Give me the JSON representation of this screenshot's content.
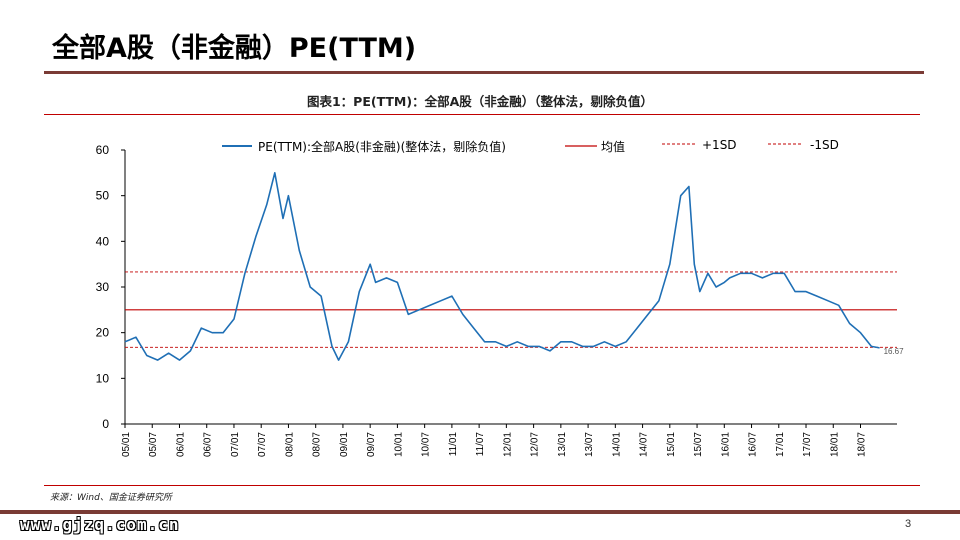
{
  "page": {
    "title": "全部A股（非金融）PE(TTM)",
    "caption": "图表1：PE(TTM)：全部A股（非金融）（整体法，剔除负值）",
    "source": "来源：Wind、国金证券研究所",
    "watermark": "www.gjzq.com.cn",
    "page_number": "3"
  },
  "colors": {
    "series": "#1f6fb5",
    "mean": "#c00000",
    "sd_lines": "#c00000",
    "brand_rule": "#7a3b35"
  },
  "chart_data": {
    "type": "line",
    "ylim": [
      0,
      60
    ],
    "y_ticks": [
      "0",
      "10",
      "20",
      "30",
      "40",
      "50",
      "60"
    ],
    "x_tick_labels": [
      "05/01",
      "05/07",
      "06/01",
      "06/07",
      "07/01",
      "07/07",
      "08/01",
      "08/07",
      "09/01",
      "09/07",
      "10/01",
      "10/07",
      "11/01",
      "11/07",
      "12/01",
      "12/07",
      "13/01",
      "13/07",
      "14/01",
      "14/07",
      "15/01",
      "15/07",
      "16/01",
      "16/07",
      "17/01",
      "17/07",
      "18/01",
      "18/07"
    ],
    "grid": false,
    "legend_placement": "top",
    "series": [
      {
        "name": "PE(TTM):全部A股(非金融)(整体法，剔除负值)",
        "x": [
          2005.0,
          2005.2,
          2005.4,
          2005.6,
          2005.8,
          2006.0,
          2006.2,
          2006.4,
          2006.6,
          2006.8,
          2007.0,
          2007.2,
          2007.4,
          2007.6,
          2007.75,
          2007.9,
          2008.0,
          2008.2,
          2008.4,
          2008.6,
          2008.8,
          2008.92,
          2009.1,
          2009.3,
          2009.5,
          2009.6,
          2009.8,
          2010.0,
          2010.2,
          2010.4,
          2010.6,
          2010.8,
          2011.0,
          2011.2,
          2011.4,
          2011.6,
          2011.8,
          2012.0,
          2012.2,
          2012.4,
          2012.6,
          2012.8,
          2013.0,
          2013.2,
          2013.4,
          2013.6,
          2013.8,
          2014.0,
          2014.2,
          2014.4,
          2014.6,
          2014.8,
          2015.0,
          2015.2,
          2015.35,
          2015.45,
          2015.55,
          2015.7,
          2015.85,
          2016.0,
          2016.1,
          2016.3,
          2016.5,
          2016.7,
          2016.9,
          2017.1,
          2017.3,
          2017.5,
          2017.7,
          2017.9,
          2018.1,
          2018.3,
          2018.5,
          2018.7,
          2018.85
        ],
        "y": [
          18,
          19,
          15,
          14,
          15.5,
          14,
          16,
          21,
          20,
          20,
          23,
          33,
          41,
          48,
          55,
          45,
          50,
          38,
          30,
          28,
          17,
          14,
          18,
          29,
          35,
          31,
          32,
          31,
          24,
          25,
          26,
          27,
          28,
          24,
          21,
          18,
          18,
          17,
          18,
          17,
          17,
          16,
          18,
          18,
          17,
          17,
          18,
          17,
          18,
          21,
          24,
          27,
          35,
          50,
          52,
          35,
          29,
          33,
          30,
          31,
          32,
          33,
          33,
          32,
          33,
          33,
          29,
          29,
          28,
          27,
          26,
          22,
          20,
          17,
          16.67
        ]
      }
    ],
    "reference_lines": [
      {
        "name": "均值",
        "value": 25,
        "style": "solid"
      },
      {
        "name": "+1SD",
        "value": 33.3,
        "style": "dashed"
      },
      {
        "name": "-1SD",
        "value": 16.8,
        "style": "dashed"
      }
    ],
    "annotations": [
      "16.67"
    ]
  }
}
